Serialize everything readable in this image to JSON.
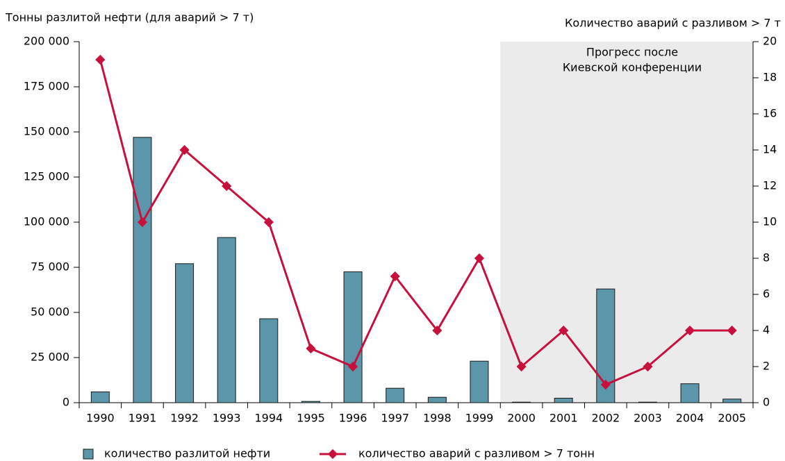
{
  "chart_data": {
    "type": "bar_line",
    "y_title": "Тонны разлитой нефти (для аварий > 7 т)",
    "y2_title": "Количество аварий с разливом > 7 т",
    "categories": [
      "1990",
      "1991",
      "1992",
      "1993",
      "1994",
      "1995",
      "1996",
      "1997",
      "1998",
      "1999",
      "2000",
      "2001",
      "2002",
      "2003",
      "2004",
      "2005"
    ],
    "series": [
      {
        "name": "количество разлитой нефти",
        "type": "bar",
        "color": "#5b96aa",
        "values": [
          6000,
          147000,
          77000,
          91500,
          46500,
          700,
          72500,
          8000,
          3000,
          23000,
          300,
          2500,
          63000,
          300,
          10500,
          2000
        ]
      },
      {
        "name": "количество аварий с разливом > 7 тонн",
        "type": "line",
        "axis": "y2",
        "color": "#c8103c",
        "values": [
          19,
          10,
          14,
          12,
          10,
          3,
          2,
          7,
          4,
          8,
          2,
          4,
          1,
          2,
          4,
          4
        ]
      }
    ],
    "ylim": [
      0,
      200000
    ],
    "yticks": [
      0,
      {
        "value": 25000,
        "label": "25 000"
      },
      {
        "value": 50000,
        "label": "50 000"
      },
      {
        "value": 75000,
        "label": "75 000"
      },
      {
        "value": 100000,
        "label": "100 000"
      },
      {
        "value": 125000,
        "label": "125 000"
      },
      {
        "value": 150000,
        "label": "150 000"
      },
      {
        "value": 175000,
        "label": "175 000"
      },
      {
        "value": 200000,
        "label": "200 000"
      }
    ],
    "y2lim": [
      0,
      20
    ],
    "y2ticks": [
      0,
      2,
      4,
      6,
      8,
      10,
      12,
      14,
      16,
      18,
      20
    ],
    "highlight": {
      "from": "2000",
      "to": "2005",
      "label_lines": [
        "Прогресс после",
        "Киевской конференции"
      ]
    },
    "grid": false,
    "legend": "bottom"
  }
}
